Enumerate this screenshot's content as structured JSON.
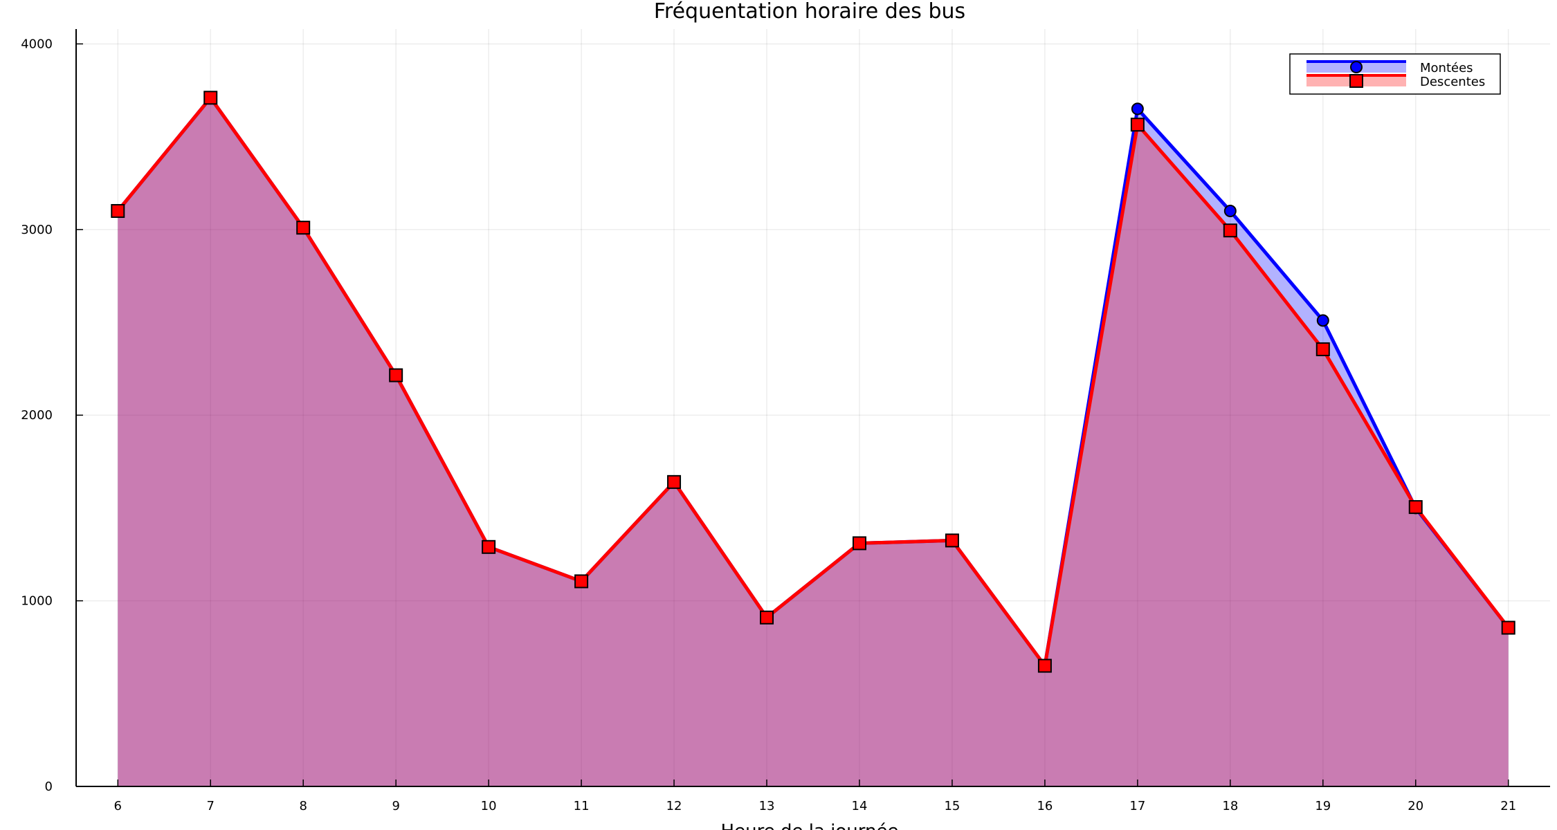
{
  "chart_data": {
    "type": "area",
    "title": "Fréquentation horaire des bus",
    "xlabel": "Heure de la journée",
    "ylabel": "",
    "x": [
      6,
      7,
      8,
      9,
      10,
      11,
      12,
      13,
      14,
      15,
      16,
      17,
      18,
      19,
      20,
      21
    ],
    "xticks": [
      "6",
      "7",
      "8",
      "9",
      "10",
      "11",
      "12",
      "13",
      "14",
      "15",
      "16",
      "17",
      "18",
      "19",
      "20",
      "21"
    ],
    "xlim": [
      5.55,
      21.45
    ],
    "ylim": [
      0,
      4080
    ],
    "yticks": [
      0,
      1000,
      2000,
      3000,
      4000
    ],
    "grid": true,
    "legend_position": "top-right",
    "series": [
      {
        "name": "Montées",
        "color": "#0000ff",
        "marker": "circle",
        "values": [
          3100,
          3710,
          3010,
          2215,
          1290,
          1105,
          1640,
          910,
          1310,
          1325,
          650,
          3650,
          3100,
          2510,
          1500,
          855
        ]
      },
      {
        "name": "Descentes",
        "color": "#ff0000",
        "marker": "square",
        "values": [
          3100,
          3710,
          3010,
          2215,
          1290,
          1105,
          1640,
          910,
          1310,
          1325,
          650,
          3565,
          2995,
          2355,
          1505,
          855
        ]
      }
    ]
  }
}
